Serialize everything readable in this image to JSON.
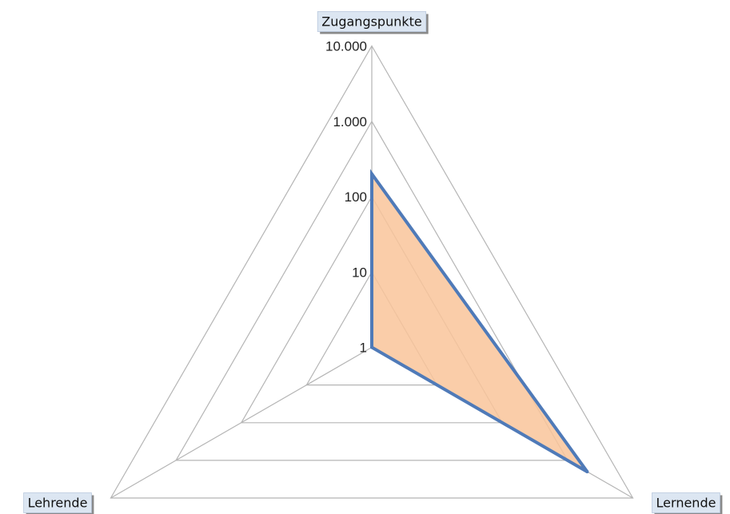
{
  "chart_data": {
    "type": "radar",
    "scale": "log",
    "categories": [
      "Zugangspunkte",
      "Lernende",
      "Lehrende"
    ],
    "ticks": [
      {
        "value": 1,
        "label": "1"
      },
      {
        "value": 10,
        "label": "10"
      },
      {
        "value": 100,
        "label": "100"
      },
      {
        "value": 1000,
        "label": "1.000"
      },
      {
        "value": 10000,
        "label": "10.000"
      }
    ],
    "range": [
      1,
      10000
    ],
    "series": [
      {
        "values": [
          200,
          2000,
          1
        ],
        "fill_color": "#f9c49a",
        "line_color": "#4f7ab8"
      }
    ],
    "grid": true,
    "legend": "none"
  }
}
